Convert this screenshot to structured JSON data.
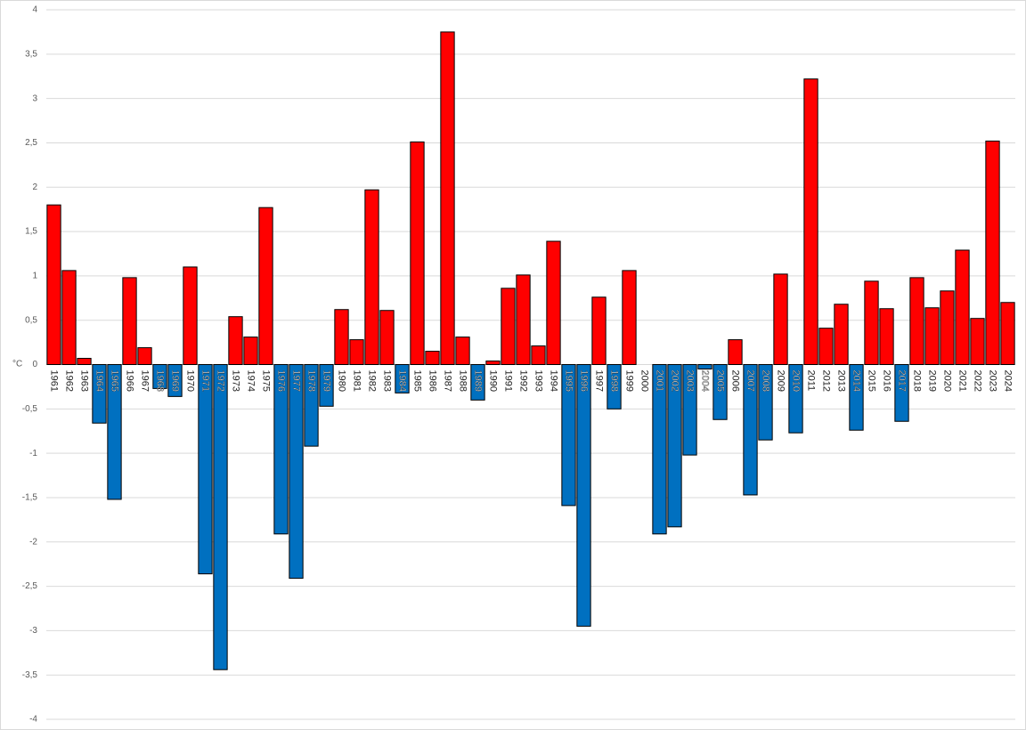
{
  "chart_data": {
    "type": "bar",
    "y_label": "°C",
    "categories": [
      "1961",
      "1962",
      "1963",
      "1964",
      "1965",
      "1966",
      "1967",
      "1968",
      "1969",
      "1970",
      "1971",
      "1972",
      "1973",
      "1974",
      "1975",
      "1976",
      "1977",
      "1978",
      "1979",
      "1980",
      "1981",
      "1982",
      "1983",
      "1984",
      "1985",
      "1986",
      "1987",
      "1988",
      "1989",
      "1990",
      "1991",
      "1992",
      "1993",
      "1994",
      "1995",
      "1996",
      "1997",
      "1998",
      "1999",
      "2000",
      "2001",
      "2002",
      "2003",
      "2004",
      "2005",
      "2006",
      "2007",
      "2008",
      "2009",
      "2010",
      "2011",
      "2012",
      "2013",
      "2014",
      "2015",
      "2016",
      "2017",
      "2018",
      "2019",
      "2020",
      "2021",
      "2022",
      "2023",
      "2024"
    ],
    "values": [
      1.8,
      1.06,
      0.07,
      -0.66,
      -1.52,
      0.98,
      0.19,
      -0.27,
      -0.36,
      1.1,
      -2.36,
      -3.44,
      0.54,
      0.31,
      1.77,
      -1.91,
      -2.41,
      -0.92,
      -0.47,
      0.62,
      0.28,
      1.97,
      0.61,
      -0.32,
      2.51,
      0.15,
      3.75,
      0.31,
      -0.4,
      0.04,
      0.86,
      1.01,
      0.21,
      1.39,
      -1.59,
      -2.95,
      0.76,
      -0.5,
      1.06,
      0,
      -1.91,
      -1.83,
      -1.02,
      -0.05,
      -0.62,
      0.28,
      -1.47,
      -0.85,
      1.02,
      -0.77,
      3.22,
      0.41,
      0.68,
      -0.74,
      0.94,
      0.63,
      -0.64,
      0.98,
      0.64,
      0.83,
      1.29,
      0.52,
      2.52,
      0.7
    ],
    "color_positive": "#ff0000",
    "color_negative": "#0070c0",
    "ylim": [
      -4,
      4
    ],
    "yticks": [
      4,
      {
        "value": 3.5,
        "label": "3,5"
      },
      3,
      {
        "value": 2.5,
        "label": "2,5"
      },
      2,
      {
        "value": 1.5,
        "label": "1,5"
      },
      1,
      {
        "value": 0.5,
        "label": "0,5"
      },
      0,
      {
        "value": -0.5,
        "label": "-0,5"
      },
      -1,
      {
        "value": -1.5,
        "label": "-1,5"
      },
      -2,
      {
        "value": -2.5,
        "label": "-2,5"
      },
      -3,
      {
        "value": -3.5,
        "label": "-3,5"
      },
      -4
    ],
    "grid": true
  }
}
